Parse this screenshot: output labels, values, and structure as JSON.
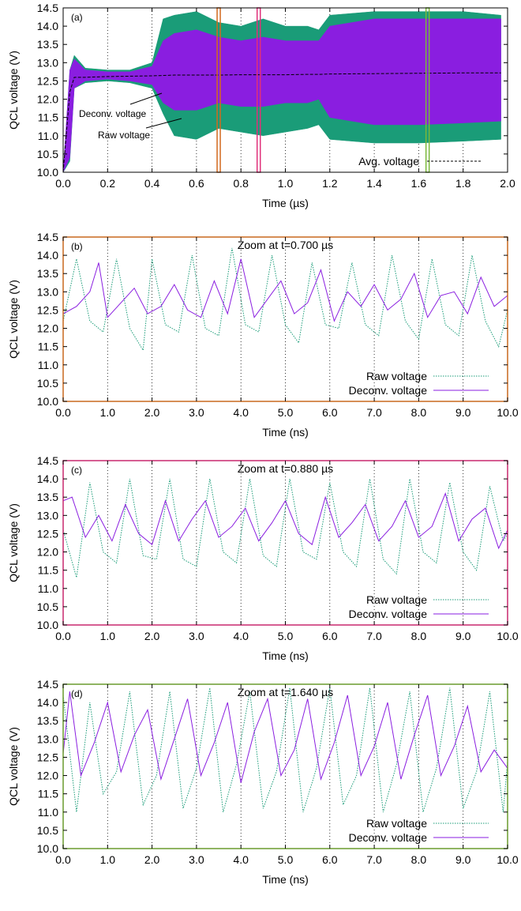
{
  "colors": {
    "raw": "#1a9c78",
    "deconv": "#8a1ee0",
    "avg": "#000000",
    "frame_b": "#c8691e",
    "frame_c": "#c8296e",
    "frame_d": "#6a9c2e",
    "marker_a1": "#d2691e",
    "marker_a2": "#e0307a",
    "marker_a3": "#7ab83a",
    "grid": "#000000"
  },
  "chart_data": [
    {
      "type": "line",
      "panel_label": "(a)",
      "title": "",
      "xlabel": "Time (µs)",
      "ylabel": "QCL voltage (V)",
      "xlim": [
        0.0,
        2.0
      ],
      "ylim": [
        10.0,
        14.5
      ],
      "xticks": [
        "0.0",
        "0.2",
        "0.4",
        "0.6",
        "0.8",
        "1.0",
        "1.2",
        "1.4",
        "1.6",
        "1.8",
        "2.0"
      ],
      "yticks": [
        "10.0",
        "10.5",
        "11.0",
        "11.5",
        "12.0",
        "12.5",
        "13.0",
        "13.5",
        "14.0",
        "14.5"
      ],
      "grid": "vertical dotted",
      "legend": [
        "Avg. voltage"
      ],
      "legend_position": "bottom-right",
      "annotations": [
        "Deconv. voltage",
        "Raw voltage"
      ],
      "markers_x": [
        0.7,
        0.88,
        1.64
      ],
      "envelope": {
        "x": [
          0.0,
          0.03,
          0.05,
          0.1,
          0.2,
          0.3,
          0.4,
          0.45,
          0.5,
          0.6,
          0.7,
          0.8,
          0.9,
          1.0,
          1.1,
          1.15,
          1.2,
          1.4,
          1.6,
          1.8,
          1.97
        ],
        "raw_upper": [
          10.0,
          12.8,
          13.2,
          12.85,
          12.8,
          12.8,
          13.0,
          14.2,
          14.3,
          14.4,
          14.1,
          14.0,
          14.2,
          14.0,
          14.0,
          13.9,
          14.3,
          14.4,
          14.4,
          14.4,
          14.3
        ],
        "raw_lower": [
          10.0,
          10.3,
          12.3,
          12.45,
          12.5,
          12.45,
          12.3,
          11.6,
          11.0,
          10.9,
          11.2,
          11.1,
          11.0,
          11.1,
          11.2,
          11.3,
          10.9,
          10.8,
          10.8,
          10.85,
          10.9
        ],
        "deconv_upper": [
          10.0,
          12.8,
          13.1,
          12.8,
          12.75,
          12.75,
          12.9,
          13.6,
          13.8,
          13.9,
          13.7,
          13.6,
          13.7,
          13.6,
          13.6,
          13.6,
          14.0,
          14.2,
          14.2,
          14.2,
          14.2
        ],
        "deconv_lower": [
          10.0,
          10.4,
          12.3,
          12.5,
          12.55,
          12.5,
          12.4,
          11.9,
          11.7,
          11.7,
          11.9,
          11.8,
          11.8,
          11.9,
          11.9,
          12.0,
          11.5,
          11.3,
          11.3,
          11.35,
          11.4
        ],
        "avg": [
          10.0,
          12.2,
          12.6,
          12.6,
          12.62,
          12.63,
          12.64,
          12.65,
          12.66,
          12.66,
          12.66,
          12.67,
          12.67,
          12.67,
          12.68,
          12.68,
          12.69,
          12.7,
          12.71,
          12.72,
          12.72
        ]
      }
    },
    {
      "type": "line",
      "panel_label": "(b)",
      "title": "Zoom at t=0.700 µs",
      "xlabel": "Time (ns)",
      "ylabel": "QCL voltage (V)",
      "xlim": [
        0.0,
        10.0
      ],
      "ylim": [
        10.0,
        14.5
      ],
      "xticks": [
        "0.0",
        "1.0",
        "2.0",
        "3.0",
        "4.0",
        "5.0",
        "6.0",
        "7.0",
        "8.0",
        "9.0",
        "10.0"
      ],
      "yticks": [
        "10.0",
        "10.5",
        "11.0",
        "11.5",
        "12.0",
        "12.5",
        "13.0",
        "13.5",
        "14.0",
        "14.5"
      ],
      "grid": "vertical dotted",
      "legend": [
        "Raw voltage",
        "Deconv. voltage"
      ],
      "legend_position": "bottom-right",
      "series": [
        {
          "name": "Raw voltage",
          "style": "dotted",
          "x": [
            0.0,
            0.3,
            0.6,
            0.9,
            1.2,
            1.5,
            1.8,
            2.0,
            2.3,
            2.6,
            2.9,
            3.2,
            3.5,
            3.8,
            4.1,
            4.4,
            4.7,
            5.0,
            5.3,
            5.6,
            5.9,
            6.2,
            6.5,
            6.8,
            7.1,
            7.4,
            7.7,
            8.0,
            8.3,
            8.6,
            8.9,
            9.2,
            9.5,
            9.8,
            10.0
          ],
          "values": [
            12.2,
            13.9,
            12.2,
            11.9,
            13.9,
            12.0,
            11.4,
            13.9,
            12.1,
            11.9,
            14.0,
            12.0,
            11.8,
            14.2,
            12.1,
            11.9,
            14.0,
            12.1,
            11.6,
            13.8,
            12.1,
            12.0,
            13.8,
            12.1,
            11.8,
            14.0,
            12.2,
            11.7,
            13.9,
            12.1,
            11.8,
            14.0,
            12.2,
            11.5,
            12.5
          ]
        },
        {
          "name": "Deconv. voltage",
          "style": "solid",
          "x": [
            0.0,
            0.3,
            0.6,
            0.8,
            1.0,
            1.3,
            1.6,
            1.9,
            2.2,
            2.5,
            2.8,
            3.1,
            3.4,
            3.7,
            4.0,
            4.3,
            4.6,
            4.9,
            5.2,
            5.5,
            5.8,
            6.1,
            6.4,
            6.7,
            7.0,
            7.3,
            7.6,
            7.9,
            8.2,
            8.5,
            8.8,
            9.1,
            9.4,
            9.7,
            10.0
          ],
          "values": [
            12.4,
            12.6,
            13.0,
            13.8,
            12.3,
            12.7,
            13.1,
            12.4,
            12.6,
            13.2,
            12.5,
            12.3,
            13.3,
            12.4,
            13.9,
            12.3,
            12.8,
            13.3,
            12.4,
            12.7,
            13.6,
            12.2,
            13.0,
            12.6,
            13.2,
            12.5,
            12.8,
            13.5,
            12.3,
            12.9,
            13.0,
            12.4,
            13.4,
            12.6,
            12.9
          ]
        }
      ]
    },
    {
      "type": "line",
      "panel_label": "(c)",
      "title": "Zoom at t=0.880 µs",
      "xlabel": "Time (ns)",
      "ylabel": "QCL voltage (V)",
      "xlim": [
        0.0,
        10.0
      ],
      "ylim": [
        10.0,
        14.5
      ],
      "xticks": [
        "0.0",
        "1.0",
        "2.0",
        "3.0",
        "4.0",
        "5.0",
        "6.0",
        "7.0",
        "8.0",
        "9.0",
        "10.0"
      ],
      "yticks": [
        "10.0",
        "10.5",
        "11.0",
        "11.5",
        "12.0",
        "12.5",
        "13.0",
        "13.5",
        "14.0",
        "14.5"
      ],
      "grid": "vertical dotted",
      "legend": [
        "Raw voltage",
        "Deconv. voltage"
      ],
      "legend_position": "bottom-right",
      "series": [
        {
          "name": "Raw voltage",
          "style": "dotted",
          "x": [
            0.0,
            0.3,
            0.6,
            0.9,
            1.2,
            1.5,
            1.8,
            2.1,
            2.4,
            2.7,
            3.0,
            3.3,
            3.6,
            3.9,
            4.2,
            4.5,
            4.8,
            5.1,
            5.4,
            5.7,
            6.0,
            6.3,
            6.6,
            6.9,
            7.2,
            7.5,
            7.8,
            8.1,
            8.4,
            8.7,
            9.0,
            9.3,
            9.6,
            9.9,
            10.0
          ],
          "values": [
            12.6,
            11.3,
            13.9,
            12.0,
            11.7,
            14.0,
            11.9,
            11.8,
            14.0,
            11.8,
            11.6,
            14.0,
            12.0,
            11.7,
            14.0,
            11.9,
            11.6,
            14.0,
            12.0,
            11.8,
            13.9,
            12.0,
            11.6,
            14.0,
            11.8,
            11.4,
            14.0,
            12.0,
            11.7,
            13.9,
            12.0,
            11.5,
            13.8,
            12.3,
            12.5
          ]
        },
        {
          "name": "Deconv. voltage",
          "style": "solid",
          "x": [
            0.0,
            0.2,
            0.5,
            0.8,
            1.1,
            1.4,
            1.7,
            2.0,
            2.3,
            2.6,
            2.9,
            3.2,
            3.5,
            3.8,
            4.1,
            4.4,
            4.7,
            5.0,
            5.3,
            5.6,
            5.9,
            6.2,
            6.5,
            6.8,
            7.1,
            7.4,
            7.7,
            8.0,
            8.3,
            8.6,
            8.9,
            9.2,
            9.5,
            9.8,
            10.0
          ],
          "values": [
            13.4,
            13.5,
            12.4,
            13.0,
            12.3,
            13.3,
            12.5,
            12.2,
            13.4,
            12.3,
            12.9,
            13.4,
            12.4,
            12.7,
            13.2,
            12.3,
            12.8,
            13.4,
            12.5,
            12.2,
            13.5,
            12.4,
            12.8,
            13.3,
            12.3,
            12.7,
            13.4,
            12.4,
            12.7,
            13.6,
            12.3,
            12.9,
            13.2,
            12.1,
            12.6
          ]
        }
      ]
    },
    {
      "type": "line",
      "panel_label": "(d)",
      "title": "Zoom at t=1.640 µs",
      "xlabel": "Time (ns)",
      "ylabel": "QCL voltage (V)",
      "xlim": [
        0.0,
        10.0
      ],
      "ylim": [
        10.0,
        14.5
      ],
      "xticks": [
        "0.0",
        "1.0",
        "2.0",
        "3.0",
        "4.0",
        "5.0",
        "6.0",
        "7.0",
        "8.0",
        "9.0",
        "10.0"
      ],
      "yticks": [
        "10.0",
        "10.5",
        "11.0",
        "11.5",
        "12.0",
        "12.5",
        "13.0",
        "13.5",
        "14.0",
        "14.5"
      ],
      "grid": "vertical dotted",
      "legend": [
        "Raw voltage",
        "Deconv. voltage"
      ],
      "legend_position": "bottom-right",
      "series": [
        {
          "name": "Raw voltage",
          "style": "dotted",
          "x": [
            0.0,
            0.3,
            0.6,
            0.9,
            1.2,
            1.5,
            1.8,
            2.1,
            2.4,
            2.7,
            3.0,
            3.3,
            3.6,
            3.9,
            4.2,
            4.5,
            4.8,
            5.1,
            5.4,
            5.7,
            6.0,
            6.3,
            6.6,
            6.9,
            7.2,
            7.5,
            7.8,
            8.1,
            8.4,
            8.7,
            9.0,
            9.3,
            9.6,
            9.9,
            10.0
          ],
          "values": [
            14.2,
            11.0,
            14.0,
            11.5,
            12.1,
            14.3,
            11.2,
            12.0,
            14.3,
            11.1,
            12.2,
            14.4,
            11.0,
            12.3,
            14.3,
            11.1,
            12.1,
            14.4,
            11.0,
            12.2,
            14.4,
            11.2,
            12.0,
            14.4,
            11.0,
            12.3,
            14.3,
            11.0,
            12.2,
            14.4,
            11.1,
            12.1,
            14.3,
            11.0,
            12.4
          ]
        },
        {
          "name": "Deconv. voltage",
          "style": "solid",
          "x": [
            0.0,
            0.15,
            0.4,
            0.7,
            1.0,
            1.3,
            1.6,
            1.9,
            2.2,
            2.5,
            2.8,
            3.1,
            3.4,
            3.7,
            4.0,
            4.3,
            4.6,
            4.9,
            5.2,
            5.5,
            5.8,
            6.1,
            6.4,
            6.7,
            7.0,
            7.3,
            7.6,
            7.9,
            8.2,
            8.5,
            8.8,
            9.1,
            9.4,
            9.7,
            10.0
          ],
          "values": [
            12.6,
            14.3,
            12.0,
            12.9,
            14.0,
            12.1,
            13.1,
            13.8,
            11.9,
            13.0,
            14.1,
            12.0,
            12.9,
            14.0,
            11.8,
            13.2,
            14.1,
            12.0,
            12.7,
            14.1,
            11.9,
            12.9,
            14.2,
            12.0,
            12.8,
            14.0,
            11.9,
            13.1,
            14.2,
            12.0,
            12.8,
            13.9,
            12.1,
            12.7,
            12.2
          ]
        }
      ]
    }
  ]
}
